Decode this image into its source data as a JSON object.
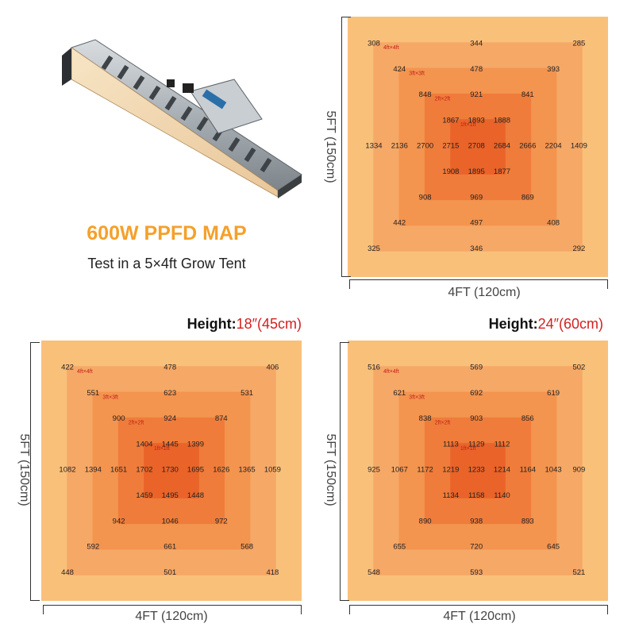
{
  "header": {
    "title": "600W PPFD MAP",
    "subtitle": "Test in a 5×4ft Grow Tent"
  },
  "colors": {
    "title": "#f5a02a",
    "height_value": "#d41f1f",
    "zone_label": "#c0201a",
    "ring_outer": "#f9c07a",
    "ring_4ft": "#f6a866",
    "ring_3ft": "#f3944f",
    "ring_2ft": "#ef7c3a",
    "ring_1ft": "#ea6328"
  },
  "icons": {
    "fixture": "led-bar-grow-light-image"
  },
  "chart_data": [
    {
      "type": "heatmap",
      "title": "",
      "height_key": "",
      "height_value": "",
      "xlabel": "4FT (120cm)",
      "ylabel": "5FT (150cm)",
      "zones": [
        "4ft×4ft",
        "3ft×3ft",
        "2ft×2ft",
        "1ft×1ft"
      ],
      "points": [
        {
          "v": 308,
          "c": 0,
          "r": 0
        },
        {
          "v": 344,
          "c": 4,
          "r": 0
        },
        {
          "v": 285,
          "c": 8,
          "r": 0
        },
        {
          "v": 424,
          "c": 1,
          "r": 1
        },
        {
          "v": 478,
          "c": 4,
          "r": 1
        },
        {
          "v": 393,
          "c": 7,
          "r": 1
        },
        {
          "v": 848,
          "c": 2,
          "r": 2
        },
        {
          "v": 921,
          "c": 4,
          "r": 2
        },
        {
          "v": 841,
          "c": 6,
          "r": 2
        },
        {
          "v": 1867,
          "c": 3,
          "r": 3
        },
        {
          "v": 1893,
          "c": 4,
          "r": 3
        },
        {
          "v": 1888,
          "c": 5,
          "r": 3
        },
        {
          "v": 1334,
          "c": 0,
          "r": 4
        },
        {
          "v": 2136,
          "c": 1,
          "r": 4
        },
        {
          "v": 2700,
          "c": 2,
          "r": 4
        },
        {
          "v": 2715,
          "c": 3,
          "r": 4
        },
        {
          "v": 2708,
          "c": 4,
          "r": 4
        },
        {
          "v": 2684,
          "c": 5,
          "r": 4
        },
        {
          "v": 2666,
          "c": 6,
          "r": 4
        },
        {
          "v": 2204,
          "c": 7,
          "r": 4
        },
        {
          "v": 1409,
          "c": 8,
          "r": 4
        },
        {
          "v": 1908,
          "c": 3,
          "r": 5
        },
        {
          "v": 1895,
          "c": 4,
          "r": 5
        },
        {
          "v": 1877,
          "c": 5,
          "r": 5
        },
        {
          "v": 908,
          "c": 2,
          "r": 6
        },
        {
          "v": 969,
          "c": 4,
          "r": 6
        },
        {
          "v": 869,
          "c": 6,
          "r": 6
        },
        {
          "v": 442,
          "c": 1,
          "r": 7
        },
        {
          "v": 497,
          "c": 4,
          "r": 7
        },
        {
          "v": 408,
          "c": 7,
          "r": 7
        },
        {
          "v": 325,
          "c": 0,
          "r": 8
        },
        {
          "v": 346,
          "c": 4,
          "r": 8
        },
        {
          "v": 292,
          "c": 8,
          "r": 8
        }
      ]
    },
    {
      "type": "heatmap",
      "title": "",
      "height_key": "Height:",
      "height_value": "18″(45cm)",
      "xlabel": "4FT (120cm)",
      "ylabel": "5FT (150cm)",
      "zones": [
        "4ft×4ft",
        "3ft×3ft",
        "2ft×2ft",
        "1ft×1ft"
      ],
      "points": [
        {
          "v": 422,
          "c": 0,
          "r": 0
        },
        {
          "v": 478,
          "c": 4,
          "r": 0
        },
        {
          "v": 406,
          "c": 8,
          "r": 0
        },
        {
          "v": 551,
          "c": 1,
          "r": 1
        },
        {
          "v": 623,
          "c": 4,
          "r": 1
        },
        {
          "v": 531,
          "c": 7,
          "r": 1
        },
        {
          "v": 900,
          "c": 2,
          "r": 2
        },
        {
          "v": 924,
          "c": 4,
          "r": 2
        },
        {
          "v": 874,
          "c": 6,
          "r": 2
        },
        {
          "v": 1404,
          "c": 3,
          "r": 3
        },
        {
          "v": 1445,
          "c": 4,
          "r": 3
        },
        {
          "v": 1399,
          "c": 5,
          "r": 3
        },
        {
          "v": 1082,
          "c": 0,
          "r": 4
        },
        {
          "v": 1394,
          "c": 1,
          "r": 4
        },
        {
          "v": 1651,
          "c": 2,
          "r": 4
        },
        {
          "v": 1702,
          "c": 3,
          "r": 4
        },
        {
          "v": 1730,
          "c": 4,
          "r": 4
        },
        {
          "v": 1695,
          "c": 5,
          "r": 4
        },
        {
          "v": 1626,
          "c": 6,
          "r": 4
        },
        {
          "v": 1365,
          "c": 7,
          "r": 4
        },
        {
          "v": 1059,
          "c": 8,
          "r": 4
        },
        {
          "v": 1459,
          "c": 3,
          "r": 5
        },
        {
          "v": 1495,
          "c": 4,
          "r": 5
        },
        {
          "v": 1448,
          "c": 5,
          "r": 5
        },
        {
          "v": 942,
          "c": 2,
          "r": 6
        },
        {
          "v": 1046,
          "c": 4,
          "r": 6
        },
        {
          "v": 972,
          "c": 6,
          "r": 6
        },
        {
          "v": 592,
          "c": 1,
          "r": 7
        },
        {
          "v": 661,
          "c": 4,
          "r": 7
        },
        {
          "v": 568,
          "c": 7,
          "r": 7
        },
        {
          "v": 448,
          "c": 0,
          "r": 8
        },
        {
          "v": 501,
          "c": 4,
          "r": 8
        },
        {
          "v": 418,
          "c": 8,
          "r": 8
        }
      ]
    },
    {
      "type": "heatmap",
      "title": "",
      "height_key": "Height:",
      "height_value": "24″(60cm)",
      "xlabel": "4FT (120cm)",
      "ylabel": "5FT (150cm)",
      "zones": [
        "4ft×4ft",
        "3ft×3ft",
        "2ft×2ft",
        "1ft×1ft"
      ],
      "points": [
        {
          "v": 516,
          "c": 0,
          "r": 0
        },
        {
          "v": 569,
          "c": 4,
          "r": 0
        },
        {
          "v": 502,
          "c": 8,
          "r": 0
        },
        {
          "v": 621,
          "c": 1,
          "r": 1
        },
        {
          "v": 692,
          "c": 4,
          "r": 1
        },
        {
          "v": 619,
          "c": 7,
          "r": 1
        },
        {
          "v": 838,
          "c": 2,
          "r": 2
        },
        {
          "v": 903,
          "c": 4,
          "r": 2
        },
        {
          "v": 856,
          "c": 6,
          "r": 2
        },
        {
          "v": 1113,
          "c": 3,
          "r": 3
        },
        {
          "v": 1129,
          "c": 4,
          "r": 3
        },
        {
          "v": 1112,
          "c": 5,
          "r": 3
        },
        {
          "v": 925,
          "c": 0,
          "r": 4
        },
        {
          "v": 1067,
          "c": 1,
          "r": 4
        },
        {
          "v": 1172,
          "c": 2,
          "r": 4
        },
        {
          "v": 1219,
          "c": 3,
          "r": 4
        },
        {
          "v": 1233,
          "c": 4,
          "r": 4
        },
        {
          "v": 1214,
          "c": 5,
          "r": 4
        },
        {
          "v": 1164,
          "c": 6,
          "r": 4
        },
        {
          "v": 1043,
          "c": 7,
          "r": 4
        },
        {
          "v": 909,
          "c": 8,
          "r": 4
        },
        {
          "v": 1134,
          "c": 3,
          "r": 5
        },
        {
          "v": 1158,
          "c": 4,
          "r": 5
        },
        {
          "v": 1140,
          "c": 5,
          "r": 5
        },
        {
          "v": 890,
          "c": 2,
          "r": 6
        },
        {
          "v": 938,
          "c": 4,
          "r": 6
        },
        {
          "v": 893,
          "c": 6,
          "r": 6
        },
        {
          "v": 655,
          "c": 1,
          "r": 7
        },
        {
          "v": 720,
          "c": 4,
          "r": 7
        },
        {
          "v": 645,
          "c": 7,
          "r": 7
        },
        {
          "v": 548,
          "c": 0,
          "r": 8
        },
        {
          "v": 593,
          "c": 4,
          "r": 8
        },
        {
          "v": 521,
          "c": 8,
          "r": 8
        }
      ]
    }
  ]
}
